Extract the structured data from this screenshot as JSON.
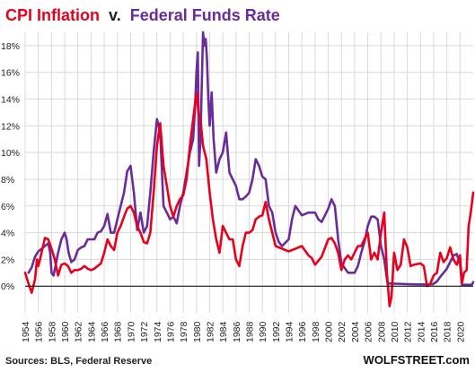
{
  "chart_data": {
    "type": "line",
    "title_parts": [
      {
        "text": "CPI Inflation",
        "color": "#e8001c"
      },
      {
        "text": "v.",
        "color": "#222222"
      },
      {
        "text": "Federal Funds Rate",
        "color": "#6a2c9a"
      }
    ],
    "source": "Sources: BLS, Federal Reserve",
    "credit": "WOLFSTREET.com",
    "ylim": [
      -2,
      19
    ],
    "xlim": [
      1954,
      2022
    ],
    "y_ticks": [
      {
        "value": 0,
        "label": "0%"
      },
      {
        "value": 2,
        "label": "2%"
      },
      {
        "value": 4,
        "label": "4%"
      },
      {
        "value": 6,
        "label": "6%"
      },
      {
        "value": 8,
        "label": "8%"
      },
      {
        "value": 10,
        "label": "10%"
      },
      {
        "value": 12,
        "label": "12%"
      },
      {
        "value": 14,
        "label": "14%"
      },
      {
        "value": 16,
        "label": "16%"
      },
      {
        "value": 18,
        "label": "18%"
      }
    ],
    "x_ticks": [
      "1954",
      "1956",
      "1958",
      "1960",
      "1962",
      "1964",
      "1966",
      "1968",
      "1970",
      "1972",
      "1974",
      "1976",
      "1978",
      "1980",
      "1982",
      "1984",
      "1986",
      "1988",
      "1990",
      "1992",
      "1994",
      "1996",
      "1998",
      "2000",
      "2002",
      "2004",
      "2006",
      "2008",
      "2010",
      "2012",
      "2014",
      "2016",
      "2018",
      "2020"
    ],
    "grid": true,
    "colors": {
      "cpi": "#e8001c",
      "fed": "#6a2c9a",
      "grid": "#d9d9d9",
      "zero": "#000000"
    },
    "series": [
      {
        "key": "fed",
        "x": [
          1954.5,
          1955.0,
          1955.5,
          1956.0,
          1956.5,
          1957.0,
          1957.5,
          1957.8,
          1958.0,
          1958.3,
          1958.6,
          1959.0,
          1959.5,
          1960.0,
          1960.3,
          1960.6,
          1961.0,
          1961.5,
          1962.0,
          1962.5,
          1963.0,
          1963.5,
          1964.0,
          1964.5,
          1965.0,
          1965.5,
          1966.0,
          1966.5,
          1967.0,
          1967.5,
          1968.0,
          1968.5,
          1969.0,
          1969.5,
          1970.0,
          1970.5,
          1971.0,
          1971.5,
          1972.0,
          1972.5,
          1973.0,
          1973.5,
          1974.0,
          1974.5,
          1975.0,
          1975.5,
          1976.0,
          1976.5,
          1977.0,
          1977.5,
          1978.0,
          1978.5,
          1979.0,
          1979.5,
          1979.8,
          1980.0,
          1980.2,
          1980.4,
          1980.6,
          1980.8,
          1981.0,
          1981.2,
          1981.4,
          1981.6,
          1981.8,
          1982.0,
          1982.3,
          1982.6,
          1983.0,
          1983.5,
          1984.0,
          1984.5,
          1985.0,
          1985.5,
          1986.0,
          1986.5,
          1987.0,
          1987.5,
          1988.0,
          1988.5,
          1989.0,
          1989.5,
          1990.0,
          1990.5,
          1991.0,
          1991.5,
          1992.0,
          1992.5,
          1993.0,
          1994.0,
          1994.5,
          1995.0,
          1996.0,
          1997.0,
          1998.0,
          1998.5,
          1999.0,
          1999.5,
          2000.0,
          2000.5,
          2001.0,
          2001.5,
          2002.0,
          2003.0,
          2004.0,
          2004.5,
          2005.0,
          2005.5,
          2006.0,
          2006.5,
          2007.0,
          2007.5,
          2008.0,
          2008.5,
          2009.0,
          2012.0,
          2015.0,
          2015.9,
          2016.5,
          2017.0,
          2017.5,
          2018.0,
          2018.5,
          2019.0,
          2019.5,
          2020.0,
          2020.3,
          2021.0,
          2021.8,
          2022.0
        ],
        "y": [
          1.0,
          1.4,
          2.2,
          2.6,
          2.8,
          3.0,
          3.2,
          2.5,
          1.0,
          0.8,
          1.5,
          2.5,
          3.5,
          4.0,
          3.5,
          2.5,
          1.8,
          2.0,
          2.7,
          2.9,
          3.0,
          3.5,
          3.5,
          3.5,
          4.0,
          4.1,
          4.5,
          5.4,
          4.0,
          4.0,
          5.0,
          6.0,
          7.0,
          8.6,
          9.0,
          7.0,
          4.2,
          5.5,
          4.0,
          4.5,
          7.0,
          10.0,
          12.5,
          11.5,
          6.0,
          5.5,
          5.0,
          5.2,
          4.7,
          6.0,
          7.0,
          8.5,
          10.0,
          11.0,
          13.5,
          16.0,
          17.5,
          9.0,
          11.0,
          15.0,
          19.0,
          18.0,
          18.5,
          17.0,
          14.0,
          12.0,
          14.5,
          11.0,
          8.5,
          9.5,
          10.0,
          11.5,
          8.5,
          8.0,
          7.5,
          6.5,
          6.5,
          6.7,
          7.0,
          8.0,
          9.5,
          9.0,
          8.2,
          8.0,
          6.0,
          5.5,
          4.0,
          3.3,
          3.0,
          3.5,
          5.0,
          6.0,
          5.3,
          5.5,
          5.5,
          5.0,
          4.8,
          5.3,
          5.8,
          6.5,
          6.0,
          3.5,
          1.7,
          1.0,
          1.0,
          1.5,
          2.5,
          3.3,
          4.5,
          5.2,
          5.2,
          5.0,
          3.0,
          2.0,
          0.2,
          0.15,
          0.12,
          0.15,
          0.35,
          0.7,
          1.0,
          1.3,
          1.8,
          2.3,
          2.4,
          1.7,
          0.1,
          0.1,
          0.1,
          0.3
        ]
      },
      {
        "key": "cpi",
        "x": [
          1954.0,
          1954.5,
          1955.0,
          1955.5,
          1955.8,
          1956.0,
          1956.5,
          1957.0,
          1957.5,
          1958.0,
          1958.5,
          1959.0,
          1959.5,
          1960.0,
          1960.5,
          1961.0,
          1961.5,
          1962.0,
          1962.5,
          1963.0,
          1963.5,
          1964.0,
          1964.5,
          1965.0,
          1965.5,
          1966.0,
          1966.5,
          1967.0,
          1967.5,
          1968.0,
          1968.5,
          1969.0,
          1969.5,
          1970.0,
          1970.5,
          1971.0,
          1971.5,
          1972.0,
          1972.5,
          1973.0,
          1973.5,
          1974.0,
          1974.5,
          1975.0,
          1975.5,
          1976.0,
          1976.5,
          1977.0,
          1977.5,
          1978.0,
          1978.5,
          1979.0,
          1979.5,
          1980.0,
          1980.3,
          1980.6,
          1981.0,
          1981.5,
          1982.0,
          1982.5,
          1983.0,
          1983.5,
          1984.0,
          1984.5,
          1985.0,
          1985.5,
          1986.0,
          1986.5,
          1987.0,
          1987.5,
          1988.0,
          1988.5,
          1989.0,
          1989.5,
          1990.0,
          1990.5,
          1991.0,
          1991.5,
          1992.0,
          1993.0,
          1994.0,
          1995.0,
          1996.0,
          1997.0,
          1997.5,
          1998.0,
          1999.0,
          2000.0,
          2000.5,
          2001.0,
          2001.5,
          2002.0,
          2002.5,
          2003.0,
          2003.5,
          2004.0,
          2004.5,
          2005.0,
          2005.5,
          2006.0,
          2006.5,
          2007.0,
          2007.5,
          2008.0,
          2008.5,
          2008.9,
          2009.3,
          2009.6,
          2010.0,
          2010.5,
          2011.0,
          2011.5,
          2012.0,
          2012.5,
          2013.0,
          2014.0,
          2014.5,
          2015.0,
          2015.5,
          2016.0,
          2016.5,
          2017.0,
          2017.5,
          2018.0,
          2018.5,
          2019.0,
          2019.5,
          2020.0,
          2020.3,
          2020.6,
          2021.0,
          2021.3,
          2021.6,
          2022.0
        ],
        "y": [
          1.0,
          0.2,
          -0.5,
          0.5,
          2.0,
          1.5,
          2.5,
          3.6,
          3.5,
          2.8,
          2.0,
          0.8,
          1.6,
          1.7,
          1.5,
          1.0,
          1.2,
          1.2,
          1.3,
          1.5,
          1.3,
          1.2,
          1.3,
          1.5,
          1.7,
          2.5,
          3.5,
          3.0,
          2.7,
          4.0,
          4.5,
          5.2,
          5.8,
          6.0,
          5.5,
          4.5,
          4.0,
          3.3,
          3.2,
          4.0,
          7.0,
          10.5,
          12.2,
          9.0,
          7.5,
          6.0,
          5.2,
          6.0,
          6.5,
          6.8,
          8.0,
          10.5,
          12.5,
          14.5,
          13.0,
          12.5,
          10.5,
          9.5,
          7.0,
          5.0,
          3.5,
          2.5,
          4.5,
          4.0,
          3.5,
          3.5,
          2.0,
          1.5,
          3.0,
          4.0,
          4.0,
          4.2,
          5.0,
          5.2,
          5.3,
          6.3,
          5.0,
          4.0,
          3.0,
          2.8,
          2.6,
          2.8,
          3.0,
          2.3,
          2.1,
          1.6,
          2.2,
          3.5,
          3.6,
          3.2,
          2.5,
          1.2,
          2.0,
          2.3,
          2.0,
          2.5,
          3.0,
          3.0,
          3.5,
          4.0,
          2.0,
          2.5,
          2.0,
          4.0,
          5.5,
          1.0,
          -1.5,
          -0.8,
          2.5,
          1.2,
          1.6,
          3.5,
          2.9,
          1.5,
          1.6,
          1.7,
          1.5,
          0.0,
          0.2,
          0.8,
          1.0,
          2.5,
          1.8,
          2.1,
          2.9,
          2.0,
          1.6,
          2.3,
          0.2,
          1.0,
          1.2,
          4.5,
          5.4,
          7.0
        ]
      }
    ]
  }
}
